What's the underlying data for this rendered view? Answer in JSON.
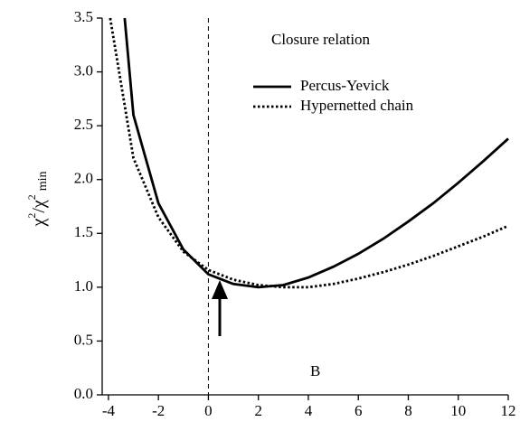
{
  "chart_data": {
    "type": "line",
    "ylabel_parts": [
      "χ",
      "2",
      "/χ",
      "2",
      "min"
    ],
    "legend_title": "Closure relation",
    "annotation": "B",
    "vline": 0,
    "xlim": [
      -4.25,
      12
    ],
    "xticks": [
      -4,
      -2,
      0,
      2,
      4,
      6,
      8,
      10,
      12
    ],
    "ylim": [
      0,
      3.5
    ],
    "yticks": [
      {
        "value": 0,
        "label": "0.0"
      },
      {
        "value": 0.5,
        "label": "0.5"
      },
      {
        "value": 1,
        "label": "1.0"
      },
      {
        "value": 1.5,
        "label": "1.5"
      },
      {
        "value": 2,
        "label": "2.0"
      },
      {
        "value": 2.5,
        "label": "2.5"
      },
      {
        "value": 3,
        "label": "3.0"
      },
      {
        "value": 3.5,
        "label": "3.5"
      }
    ],
    "series": [
      {
        "name": "Percus-Yevick",
        "color": "#000000",
        "dash": "solid",
        "x": [
          -3.35,
          -3,
          -2,
          -1,
          0,
          1,
          2,
          3,
          4,
          5,
          6,
          7,
          8,
          9,
          10,
          11,
          12
        ],
        "values": [
          3.5,
          2.6,
          1.78,
          1.35,
          1.12,
          1.03,
          1.0,
          1.02,
          1.09,
          1.19,
          1.31,
          1.45,
          1.61,
          1.78,
          1.97,
          2.17,
          2.38
        ]
      },
      {
        "name": "Hypernetted chain",
        "color": "#000000",
        "dash": "dotted",
        "x": [
          -3.93,
          -3,
          -2,
          -1,
          0,
          1,
          2,
          3,
          4,
          5,
          6,
          7,
          8,
          9,
          10,
          11,
          12
        ],
        "values": [
          3.5,
          2.2,
          1.65,
          1.33,
          1.16,
          1.07,
          1.02,
          1.0,
          1.0,
          1.03,
          1.08,
          1.14,
          1.21,
          1.29,
          1.38,
          1.47,
          1.57
        ]
      }
    ]
  }
}
